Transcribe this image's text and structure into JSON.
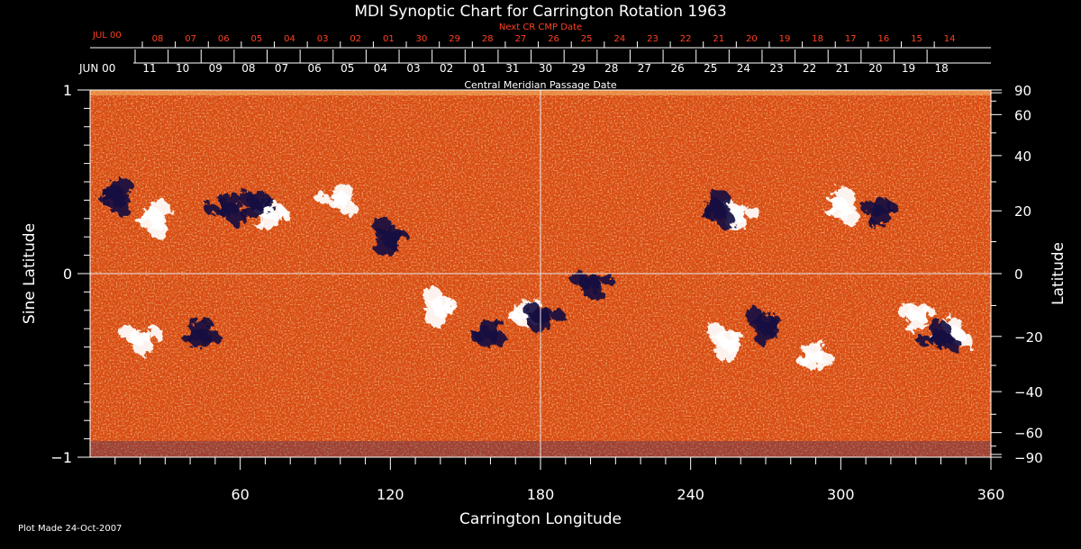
{
  "chart_data": {
    "type": "heatmap",
    "title": "MDI Synoptic Chart for Carrington Rotation 1963",
    "next_cr_label": "Next CR CMP Date",
    "next_month_label": "JUL 00",
    "next_dates": [
      "08",
      "07",
      "06",
      "05",
      "04",
      "03",
      "02",
      "01",
      "30",
      "29",
      "28",
      "27",
      "26",
      "25",
      "24",
      "23",
      "22",
      "21",
      "20",
      "19",
      "18",
      "17",
      "16",
      "15",
      "14"
    ],
    "month_label": "JUN 00",
    "dates": [
      "11",
      "10",
      "09",
      "08",
      "07",
      "06",
      "05",
      "04",
      "03",
      "02",
      "01",
      "31",
      "30",
      "29",
      "28",
      "27",
      "26",
      "25",
      "24",
      "23",
      "22",
      "21",
      "20",
      "19",
      "18"
    ],
    "cmp_label": "Central Meridian Passage Date",
    "xlabel": "Carrington Longitude",
    "ylabel_left": "Sine Latitude",
    "ylabel_right": "Latitude",
    "x_ticks": [
      "60",
      "120",
      "180",
      "240",
      "300",
      "360"
    ],
    "x_tick_values": [
      60,
      120,
      180,
      240,
      300,
      360
    ],
    "xlim": [
      0,
      360
    ],
    "y_ticks_left": [
      "1",
      "0",
      "−1"
    ],
    "y_tick_values_left": [
      1,
      0,
      -1
    ],
    "ylim": [
      -1,
      1
    ],
    "y_ticks_right": [
      "90",
      "60",
      "40",
      "20",
      "0",
      "−20",
      "−40",
      "−60",
      "−90"
    ],
    "y_tick_values_right": [
      90,
      60,
      40,
      20,
      0,
      -20,
      -40,
      -60,
      -90
    ],
    "grid_lines": {
      "longitude": 180,
      "sine_latitude": 0
    },
    "colormap": {
      "background": "#d84a10",
      "positive": "#ffffff",
      "negative": "#141040",
      "mid": "#f0a030"
    },
    "positive_regions": [
      {
        "lon": 25,
        "sinlat": 0.3
      },
      {
        "lon": 72,
        "sinlat": 0.32
      },
      {
        "lon": 100,
        "sinlat": 0.4
      },
      {
        "lon": 140,
        "sinlat": -0.18
      },
      {
        "lon": 175,
        "sinlat": -0.22
      },
      {
        "lon": 258,
        "sinlat": 0.33
      },
      {
        "lon": 300,
        "sinlat": 0.36
      },
      {
        "lon": 330,
        "sinlat": -0.23
      },
      {
        "lon": 345,
        "sinlat": -0.33
      },
      {
        "lon": 255,
        "sinlat": -0.37
      },
      {
        "lon": 290,
        "sinlat": -0.45
      },
      {
        "lon": 20,
        "sinlat": -0.35
      }
    ],
    "negative_regions": [
      {
        "lon": 10,
        "sinlat": 0.42
      },
      {
        "lon": 66,
        "sinlat": 0.38
      },
      {
        "lon": 55,
        "sinlat": 0.35
      },
      {
        "lon": 120,
        "sinlat": 0.2
      },
      {
        "lon": 160,
        "sinlat": -0.33
      },
      {
        "lon": 180,
        "sinlat": -0.23
      },
      {
        "lon": 250,
        "sinlat": 0.35
      },
      {
        "lon": 315,
        "sinlat": 0.34
      },
      {
        "lon": 340,
        "sinlat": -0.35
      },
      {
        "lon": 270,
        "sinlat": -0.28
      },
      {
        "lon": 45,
        "sinlat": -0.33
      },
      {
        "lon": 200,
        "sinlat": -0.05
      }
    ],
    "footer": "Plot Made 24-Oct-2007"
  }
}
